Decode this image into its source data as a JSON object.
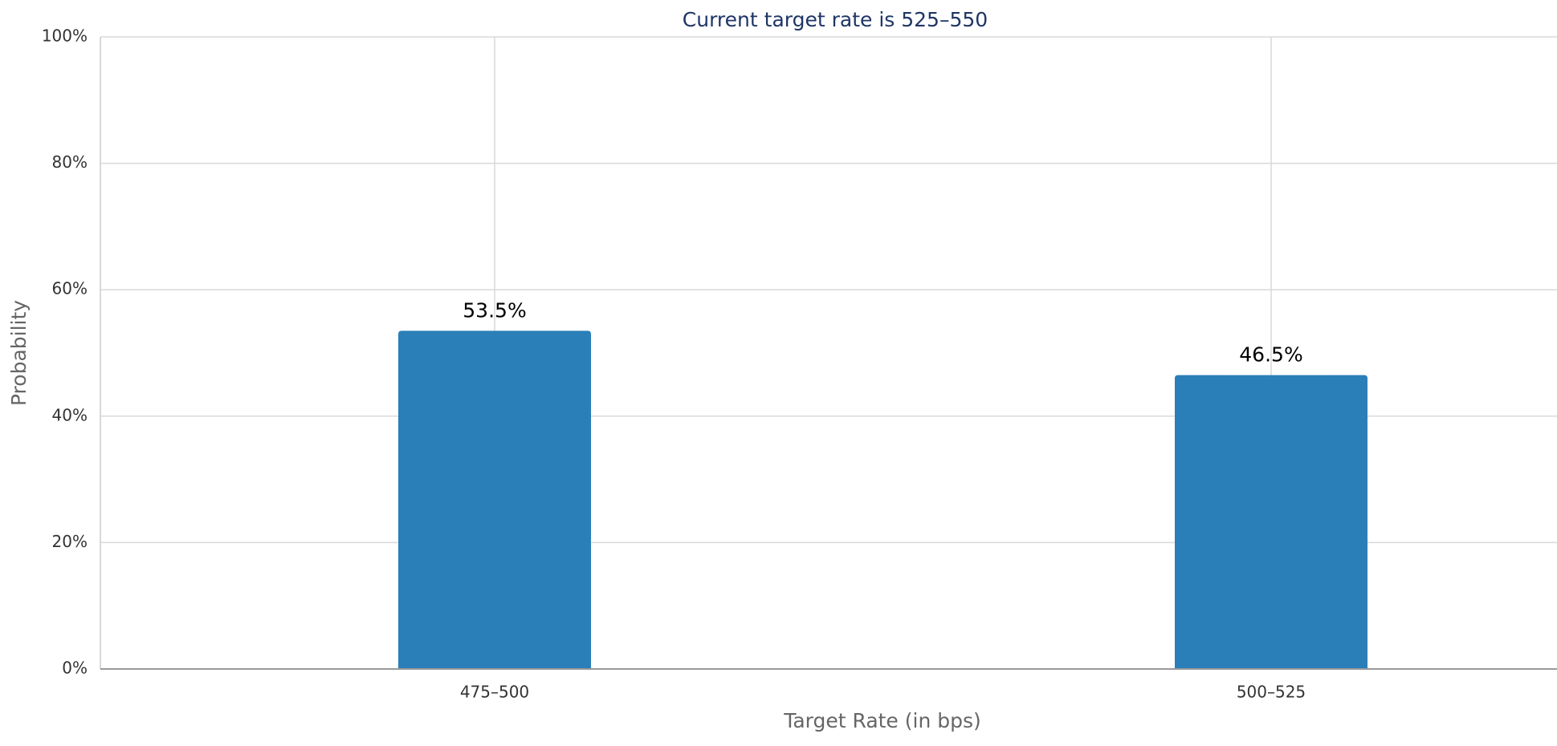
{
  "chart_data": {
    "type": "bar",
    "title": "Current target rate is 525–550",
    "x_label": "Target Rate (in bps)",
    "y_label": "Probability",
    "categories": [
      "475–500",
      "500–525"
    ],
    "values": [
      53.5,
      46.5
    ],
    "value_labels": [
      "53.5%",
      "46.5%"
    ],
    "color": "#2a7fb8",
    "ylim": [
      0,
      100
    ],
    "yticks": [
      {
        "value": 0,
        "label": "0%"
      },
      {
        "value": 20,
        "label": "20%"
      },
      {
        "value": 40,
        "label": "40%"
      },
      {
        "value": 60,
        "label": "60%"
      },
      {
        "value": 80,
        "label": "80%"
      },
      {
        "value": 100,
        "label": "100%"
      }
    ],
    "grid": true
  }
}
